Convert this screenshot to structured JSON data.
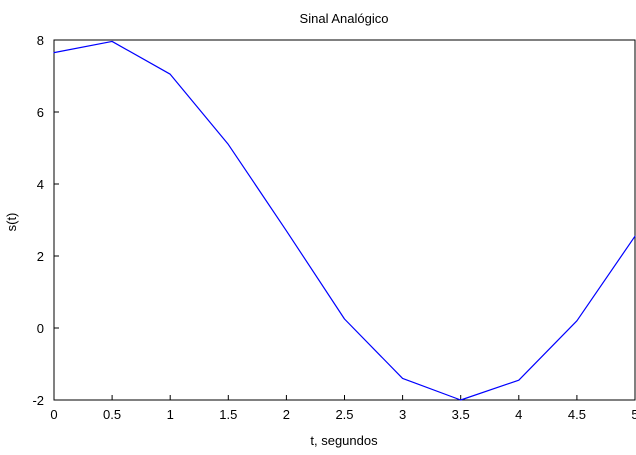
{
  "chart_data": {
    "type": "line",
    "title": "Sinal Analógico",
    "xlabel": "t, segundos",
    "ylabel": "s(t)",
    "xlim": [
      0,
      5
    ],
    "ylim": [
      -2,
      8
    ],
    "x_ticks": [
      "0",
      "0.5",
      "1",
      "1.5",
      "2",
      "2.5",
      "3",
      "3.5",
      "4",
      "4.5",
      "5"
    ],
    "y_ticks": [
      "-2",
      "0",
      "2",
      "4",
      "6",
      "8"
    ],
    "grid": true,
    "grid_style": "dashed",
    "line_color": "#0000ff",
    "series": [
      {
        "x": [
          0,
          0.5,
          1,
          1.5,
          2,
          2.5,
          3,
          3.5,
          4,
          4.5,
          5
        ],
        "y": [
          7.65,
          7.96,
          7.05,
          5.1,
          2.7,
          0.25,
          -1.4,
          -2.0,
          -1.45,
          0.2,
          2.55
        ]
      }
    ]
  }
}
